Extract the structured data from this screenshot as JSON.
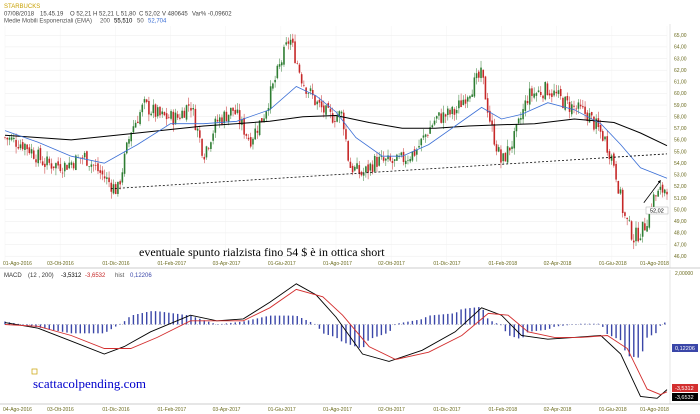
{
  "header": {
    "symbol": "STARBUCKS",
    "date": "07/08/2018",
    "time": "15.45.19",
    "open": "O 52,21",
    "high": "H 52,21",
    "low": "L 51,80",
    "close": "C 52,02",
    "volume": "V 480645",
    "var": "Var% -0,09602",
    "ema_label": "Medie Mobili Esponenziali (EMA)",
    "ema1_period": "200",
    "ema1_value": "55,510",
    "ema2_period": "50",
    "ema2_value": "52,704"
  },
  "annotation": "eventuale spunto rialzista fino 54 $ è in ottica short",
  "brand": "scattacolpending.com",
  "macd": {
    "label": "MACD",
    "params": "(12 , 200)",
    "v1": "-3,5312",
    "v2": "-3,6532",
    "hist_label": "hist",
    "hist_value": "0,12206",
    "scale_top": "2,00000",
    "badge_hist": "0,12206",
    "badge_v1": "-3,5312",
    "badge_v2": "-3,6532"
  },
  "colors": {
    "up": "#2e7d32",
    "down": "#c62828",
    "ema200": "#000000",
    "ema50": "#3b6fd6",
    "macd": "#000000",
    "signal": "#d32f2f",
    "hist": "#3a46a8"
  },
  "chart_data": [
    {
      "type": "candlestick",
      "title": "STARBUCKS",
      "x_ticks": [
        "01-Ago-2016",
        "03-Ott-2016",
        "01-Dic-2016",
        "01-Feb-2017",
        "03-Apr-2017",
        "01-Giu-2017",
        "01-Ago-2017",
        "02-Ott-2017",
        "01-Dic-2017",
        "01-Feb-2018",
        "02-Apr-2018",
        "01-Giu-2018",
        "01-Ago-2018"
      ],
      "y_ticks": [
        46,
        47,
        48,
        49,
        50,
        51,
        52,
        53,
        54,
        55,
        56,
        57,
        58,
        59,
        60,
        61,
        62,
        63,
        64,
        65
      ],
      "y_tick_labels": [
        "46,00",
        "47,00",
        "48,00",
        "49,00",
        "50,00",
        "51,00",
        "52,00",
        "53,00",
        "54,00",
        "55,00",
        "56,00",
        "57,00",
        "58,00",
        "59,00",
        "60,00",
        "61,00",
        "62,00",
        "63,00",
        "64,00",
        "65,00"
      ],
      "ylim": [
        45.5,
        65.8
      ],
      "last_price_label": "52,02",
      "close_path": [
        {
          "t": 0,
          "v": 56.2
        },
        {
          "t": 0.03,
          "v": 55.6
        },
        {
          "t": 0.06,
          "v": 54.0
        },
        {
          "t": 0.09,
          "v": 53.8
        },
        {
          "t": 0.12,
          "v": 54.6
        },
        {
          "t": 0.15,
          "v": 52.8
        },
        {
          "t": 0.17,
          "v": 51.6
        },
        {
          "t": 0.19,
          "v": 56.8
        },
        {
          "t": 0.21,
          "v": 59.0
        },
        {
          "t": 0.235,
          "v": 58.0
        },
        {
          "t": 0.26,
          "v": 57.9
        },
        {
          "t": 0.28,
          "v": 59.2
        },
        {
          "t": 0.3,
          "v": 54.8
        },
        {
          "t": 0.32,
          "v": 57.6
        },
        {
          "t": 0.345,
          "v": 58.6
        },
        {
          "t": 0.37,
          "v": 56.0
        },
        {
          "t": 0.39,
          "v": 58.0
        },
        {
          "t": 0.41,
          "v": 61.5
        },
        {
          "t": 0.43,
          "v": 64.8
        },
        {
          "t": 0.45,
          "v": 61.0
        },
        {
          "t": 0.47,
          "v": 59.2
        },
        {
          "t": 0.49,
          "v": 58.0
        },
        {
          "t": 0.51,
          "v": 58.2
        },
        {
          "t": 0.52,
          "v": 53.8
        },
        {
          "t": 0.54,
          "v": 53.0
        },
        {
          "t": 0.56,
          "v": 54.2
        },
        {
          "t": 0.59,
          "v": 54.0
        },
        {
          "t": 0.62,
          "v": 55.0
        },
        {
          "t": 0.65,
          "v": 57.8
        },
        {
          "t": 0.68,
          "v": 58.4
        },
        {
          "t": 0.7,
          "v": 60.2
        },
        {
          "t": 0.72,
          "v": 61.6
        },
        {
          "t": 0.735,
          "v": 57.0
        },
        {
          "t": 0.75,
          "v": 54.0
        },
        {
          "t": 0.77,
          "v": 56.2
        },
        {
          "t": 0.79,
          "v": 59.8
        },
        {
          "t": 0.82,
          "v": 60.4
        },
        {
          "t": 0.85,
          "v": 59.0
        },
        {
          "t": 0.88,
          "v": 58.2
        },
        {
          "t": 0.905,
          "v": 56.2
        },
        {
          "t": 0.92,
          "v": 54.0
        },
        {
          "t": 0.935,
          "v": 49.5
        },
        {
          "t": 0.95,
          "v": 47.6
        },
        {
          "t": 0.965,
          "v": 48.4
        },
        {
          "t": 0.98,
          "v": 51.0
        },
        {
          "t": 1.0,
          "v": 52.0
        }
      ],
      "ema200": [
        {
          "t": 0,
          "v": 56.4
        },
        {
          "t": 0.1,
          "v": 56.0
        },
        {
          "t": 0.2,
          "v": 56.6
        },
        {
          "t": 0.3,
          "v": 57.2
        },
        {
          "t": 0.4,
          "v": 57.6
        },
        {
          "t": 0.45,
          "v": 58.0
        },
        {
          "t": 0.5,
          "v": 58.1
        },
        {
          "t": 0.55,
          "v": 57.5
        },
        {
          "t": 0.6,
          "v": 57.0
        },
        {
          "t": 0.65,
          "v": 57.0
        },
        {
          "t": 0.7,
          "v": 57.2
        },
        {
          "t": 0.75,
          "v": 57.3
        },
        {
          "t": 0.8,
          "v": 57.4
        },
        {
          "t": 0.86,
          "v": 57.8
        },
        {
          "t": 0.92,
          "v": 57.5
        },
        {
          "t": 0.96,
          "v": 56.6
        },
        {
          "t": 1.0,
          "v": 55.5
        }
      ],
      "ema50": [
        {
          "t": 0,
          "v": 56.8
        },
        {
          "t": 0.05,
          "v": 55.8
        },
        {
          "t": 0.1,
          "v": 54.6
        },
        {
          "t": 0.15,
          "v": 54.0
        },
        {
          "t": 0.2,
          "v": 55.6
        },
        {
          "t": 0.25,
          "v": 57.4
        },
        {
          "t": 0.3,
          "v": 57.4
        },
        {
          "t": 0.35,
          "v": 57.6
        },
        {
          "t": 0.4,
          "v": 58.6
        },
        {
          "t": 0.44,
          "v": 60.6
        },
        {
          "t": 0.47,
          "v": 59.8
        },
        {
          "t": 0.5,
          "v": 58.4
        },
        {
          "t": 0.53,
          "v": 56.2
        },
        {
          "t": 0.57,
          "v": 54.6
        },
        {
          "t": 0.6,
          "v": 54.6
        },
        {
          "t": 0.64,
          "v": 55.6
        },
        {
          "t": 0.68,
          "v": 57.2
        },
        {
          "t": 0.72,
          "v": 58.8
        },
        {
          "t": 0.75,
          "v": 57.8
        },
        {
          "t": 0.78,
          "v": 58.2
        },
        {
          "t": 0.82,
          "v": 59.2
        },
        {
          "t": 0.86,
          "v": 58.6
        },
        {
          "t": 0.9,
          "v": 57.4
        },
        {
          "t": 0.93,
          "v": 55.6
        },
        {
          "t": 0.96,
          "v": 53.6
        },
        {
          "t": 1.0,
          "v": 52.7
        }
      ],
      "trendline": [
        {
          "t": 0.16,
          "v": 51.8
        },
        {
          "t": 1.0,
          "v": 54.8
        }
      ],
      "arrow": {
        "from": {
          "t": 0.965,
          "v": 50.6
        },
        "to": {
          "t": 0.99,
          "v": 52.5
        }
      }
    },
    {
      "type": "line",
      "title": "MACD",
      "x_ticks": [
        "04-Ago-2016",
        "03-Ott-2016",
        "01-Dic-2016",
        "01-Feb-2017",
        "03-Apr-2017",
        "01-Giu-2017",
        "01-Ago-2017",
        "02-Ott-2017",
        "01-Dic-2017",
        "01-Feb-2018",
        "02-Apr-2018",
        "01-Giu-2018",
        "01-Ago-2018"
      ],
      "ylim": [
        -4.2,
        2.3
      ],
      "series": [
        {
          "name": "MACD",
          "values": [
            {
              "t": 0,
              "v": 0.1
            },
            {
              "t": 0.05,
              "v": -0.2
            },
            {
              "t": 0.1,
              "v": -0.9
            },
            {
              "t": 0.15,
              "v": -1.6
            },
            {
              "t": 0.18,
              "v": -1.2
            },
            {
              "t": 0.22,
              "v": -0.4
            },
            {
              "t": 0.28,
              "v": 0.5
            },
            {
              "t": 0.32,
              "v": 0.2
            },
            {
              "t": 0.36,
              "v": 0.3
            },
            {
              "t": 0.4,
              "v": 1.2
            },
            {
              "t": 0.44,
              "v": 2.2
            },
            {
              "t": 0.47,
              "v": 1.6
            },
            {
              "t": 0.5,
              "v": 0.4
            },
            {
              "t": 0.54,
              "v": -1.6
            },
            {
              "t": 0.58,
              "v": -2.0
            },
            {
              "t": 0.63,
              "v": -1.4
            },
            {
              "t": 0.68,
              "v": -0.4
            },
            {
              "t": 0.72,
              "v": 0.9
            },
            {
              "t": 0.75,
              "v": 0.5
            },
            {
              "t": 0.78,
              "v": -0.6
            },
            {
              "t": 0.82,
              "v": -0.8
            },
            {
              "t": 0.86,
              "v": -0.7
            },
            {
              "t": 0.9,
              "v": -0.6
            },
            {
              "t": 0.93,
              "v": -1.6
            },
            {
              "t": 0.96,
              "v": -3.9
            },
            {
              "t": 0.985,
              "v": -4.0
            },
            {
              "t": 1.0,
              "v": -3.53
            }
          ]
        },
        {
          "name": "signal",
          "values": [
            {
              "t": 0,
              "v": 0.0
            },
            {
              "t": 0.05,
              "v": -0.1
            },
            {
              "t": 0.1,
              "v": -0.6
            },
            {
              "t": 0.15,
              "v": -1.3
            },
            {
              "t": 0.19,
              "v": -1.3
            },
            {
              "t": 0.23,
              "v": -0.7
            },
            {
              "t": 0.28,
              "v": 0.2
            },
            {
              "t": 0.32,
              "v": 0.2
            },
            {
              "t": 0.36,
              "v": 0.2
            },
            {
              "t": 0.4,
              "v": 0.9
            },
            {
              "t": 0.44,
              "v": 1.9
            },
            {
              "t": 0.48,
              "v": 1.5
            },
            {
              "t": 0.51,
              "v": 0.5
            },
            {
              "t": 0.55,
              "v": -1.2
            },
            {
              "t": 0.59,
              "v": -1.9
            },
            {
              "t": 0.64,
              "v": -1.5
            },
            {
              "t": 0.69,
              "v": -0.6
            },
            {
              "t": 0.73,
              "v": 0.6
            },
            {
              "t": 0.76,
              "v": 0.5
            },
            {
              "t": 0.79,
              "v": -0.4
            },
            {
              "t": 0.83,
              "v": -0.7
            },
            {
              "t": 0.87,
              "v": -0.7
            },
            {
              "t": 0.91,
              "v": -0.6
            },
            {
              "t": 0.94,
              "v": -1.3
            },
            {
              "t": 0.97,
              "v": -3.5
            },
            {
              "t": 0.99,
              "v": -3.8
            },
            {
              "t": 1.0,
              "v": -3.65
            }
          ]
        }
      ]
    }
  ]
}
